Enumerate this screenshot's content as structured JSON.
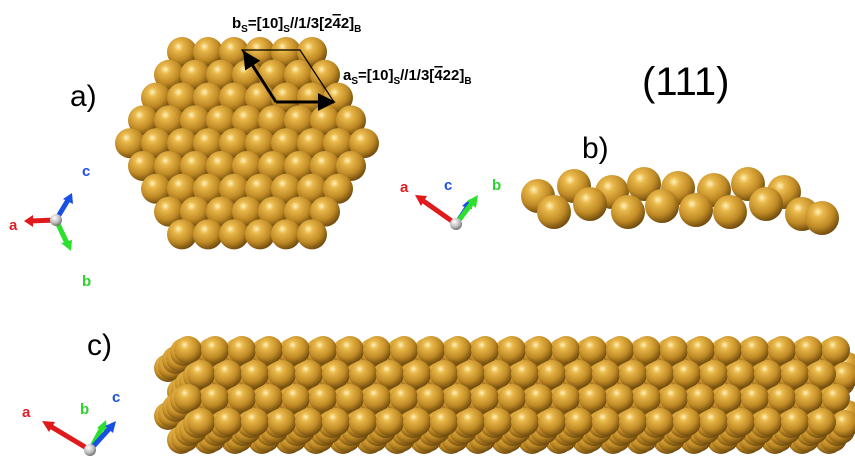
{
  "labels": {
    "panel_a": "a)",
    "panel_b": "b)",
    "panel_c": "c)",
    "miller_index": "(111)"
  },
  "vectors": {
    "b_vec": {
      "letter": "b",
      "sub1": "S",
      "mid": "=[10]",
      "sub2": "S",
      "tail": "//1/3[2",
      "bar": "4",
      "tail2": "2]",
      "sub3": "B"
    },
    "a_vec": {
      "letter": "a",
      "sub1": "S",
      "mid": "=[10]",
      "sub2": "S",
      "tail": "//1/3[",
      "bar": "4",
      "tail2": "22]",
      "sub3": "B"
    }
  },
  "axes": {
    "a": "a",
    "b": "b",
    "c": "c"
  },
  "colors": {
    "atom": "#c9952a",
    "atom_light": "#ffe8a0",
    "atom_dark": "#7a5310",
    "axis_a": "#e0191c",
    "axis_b": "#2ee02e",
    "axis_c": "#1a4fe6",
    "label_a": "#e21f26",
    "label_b": "#2dd22d",
    "label_c": "#1f4fe0"
  }
}
